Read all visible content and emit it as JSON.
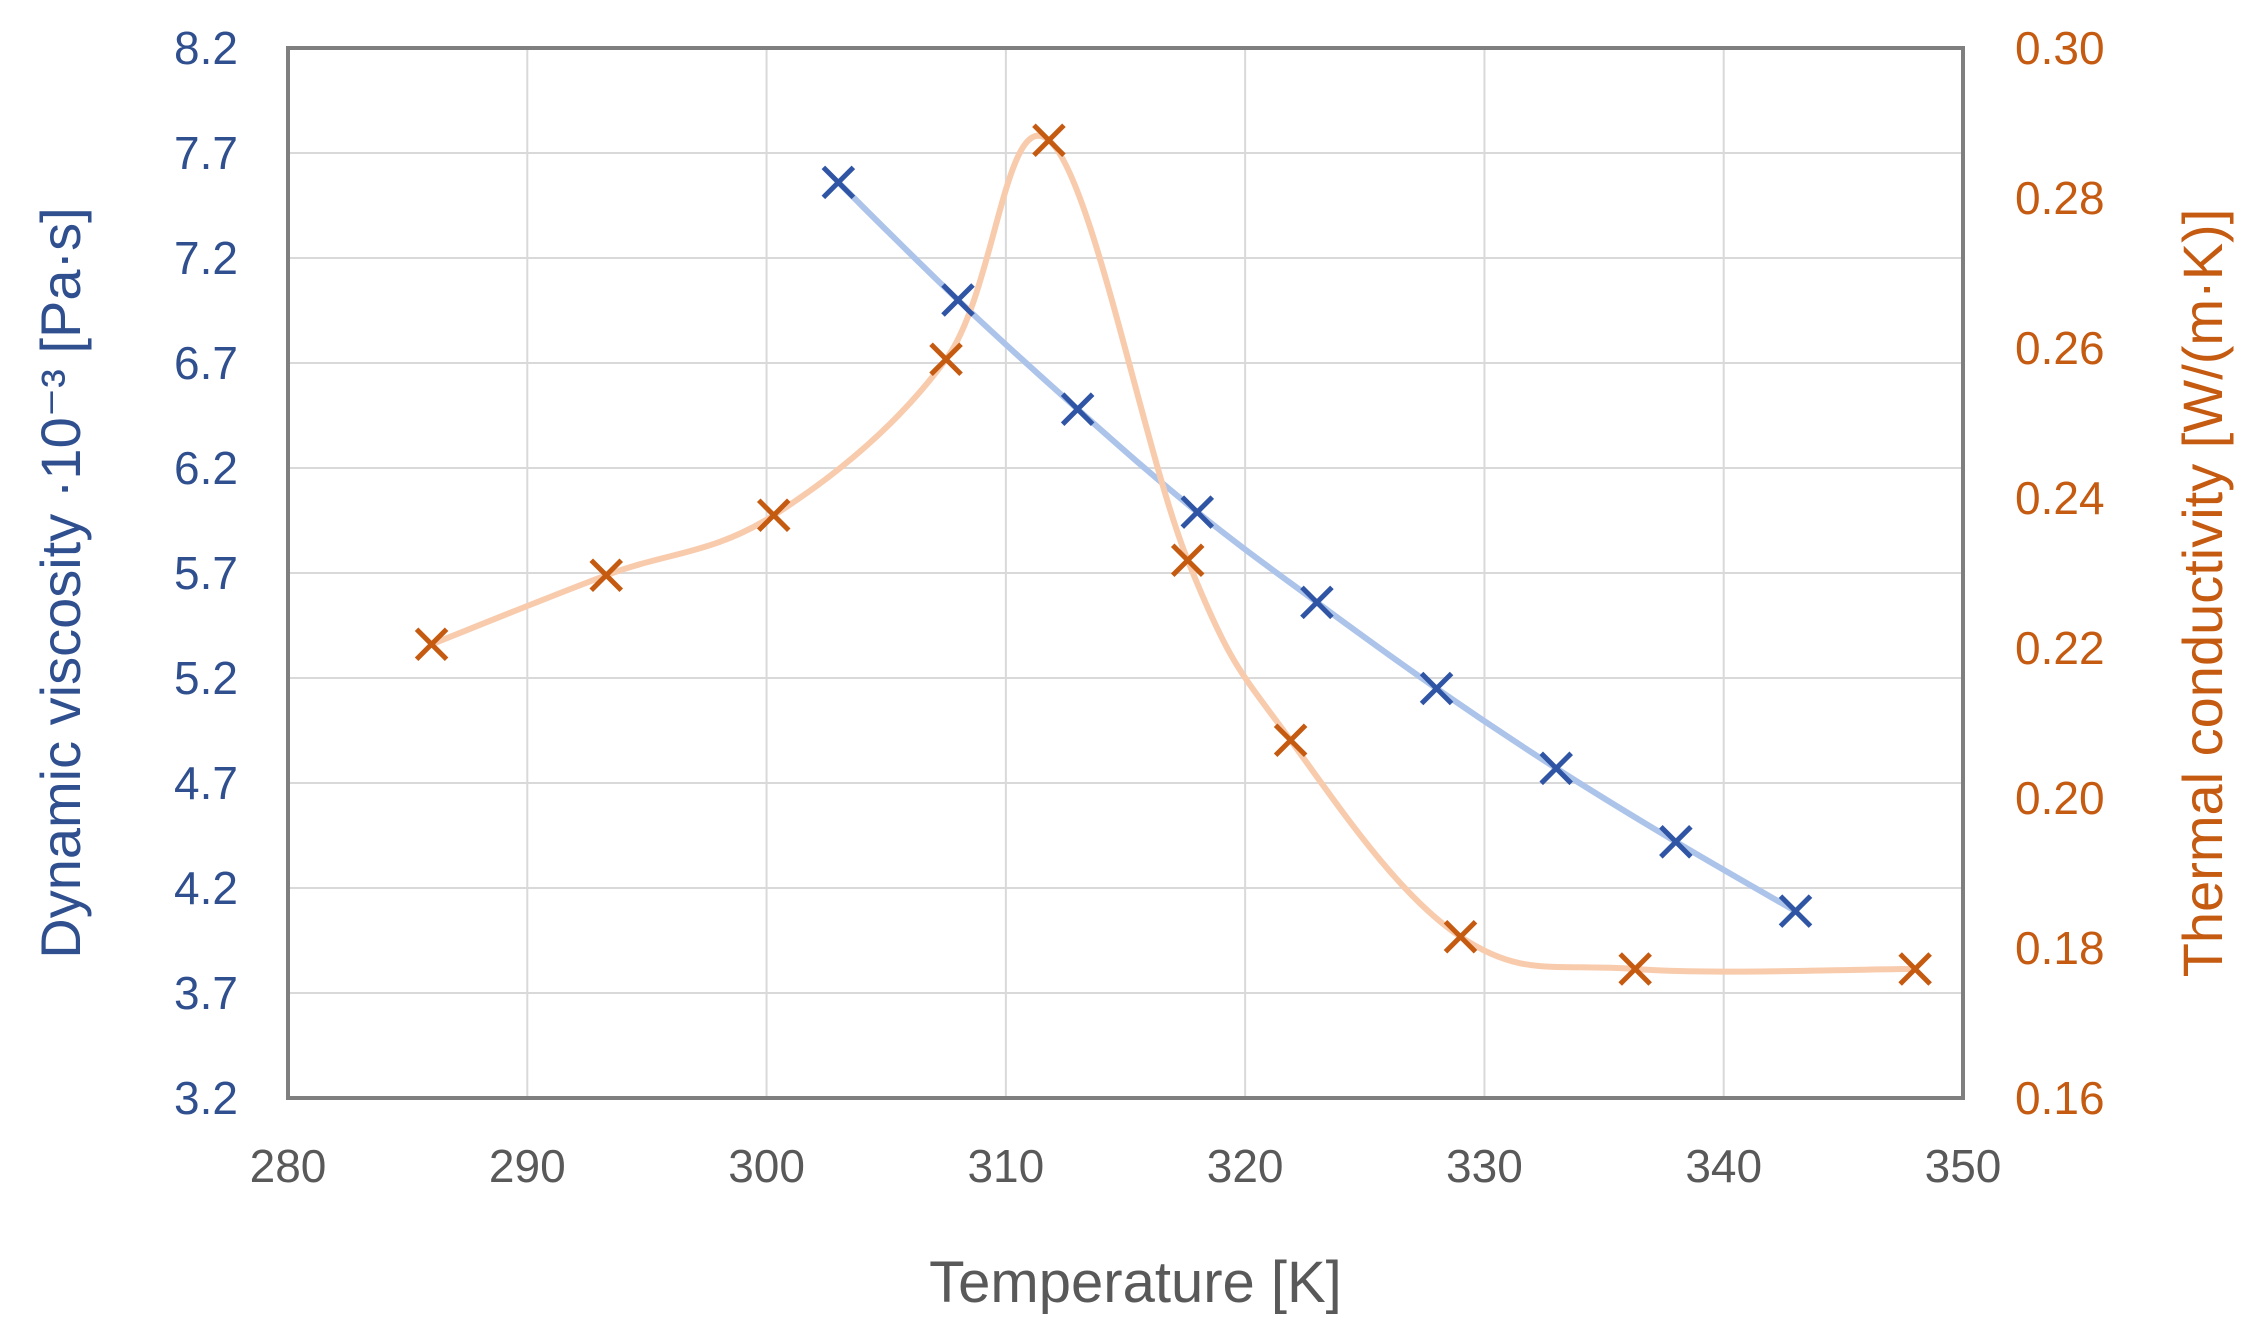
{
  "chart_data": {
    "type": "scatter",
    "title": "",
    "xlabel": "Temperature [K]",
    "ylabel_left": "Dynamic viscosity ·10⁻³ [Pa·s]",
    "ylabel_right": "Thermal conductivity [W/(m·K)]",
    "xlim": [
      280,
      350
    ],
    "ylim_left": [
      3.2,
      8.2
    ],
    "ylim_right": [
      0.16,
      0.3
    ],
    "x_ticks": [
      "280",
      "290",
      "300",
      "310",
      "320",
      "330",
      "340",
      "350"
    ],
    "y_left_ticks": [
      "3.2",
      "3.7",
      "4.2",
      "4.7",
      "5.2",
      "5.7",
      "6.2",
      "6.7",
      "7.2",
      "7.7",
      "8.2"
    ],
    "y_right_ticks": [
      "0.16",
      "0.18",
      "0.20",
      "0.22",
      "0.24",
      "0.26",
      "0.28",
      "0.30"
    ],
    "grid": true,
    "series": [
      {
        "name": "Dynamic viscosity",
        "axis": "left",
        "marker": "x",
        "marker_color": "#2f55a4",
        "line_color": "#adc4ea",
        "x": [
          303,
          308,
          313,
          318,
          323,
          328,
          333,
          338,
          343
        ],
        "y": [
          7.56,
          7.0,
          6.48,
          5.99,
          5.56,
          5.15,
          4.77,
          4.42,
          4.09
        ]
      },
      {
        "name": "Thermal conductivity",
        "axis": "right",
        "marker": "x",
        "marker_color": "#c55a11",
        "line_color": "#f8cbad",
        "x": [
          286,
          293.3,
          300.3,
          307.5,
          311.8,
          317.6,
          321.9,
          329,
          336.3,
          348
        ],
        "y": [
          0.2205,
          0.2297,
          0.2377,
          0.2585,
          0.2877,
          0.2317,
          0.2077,
          0.1815,
          0.1772,
          0.1772
        ]
      }
    ]
  }
}
